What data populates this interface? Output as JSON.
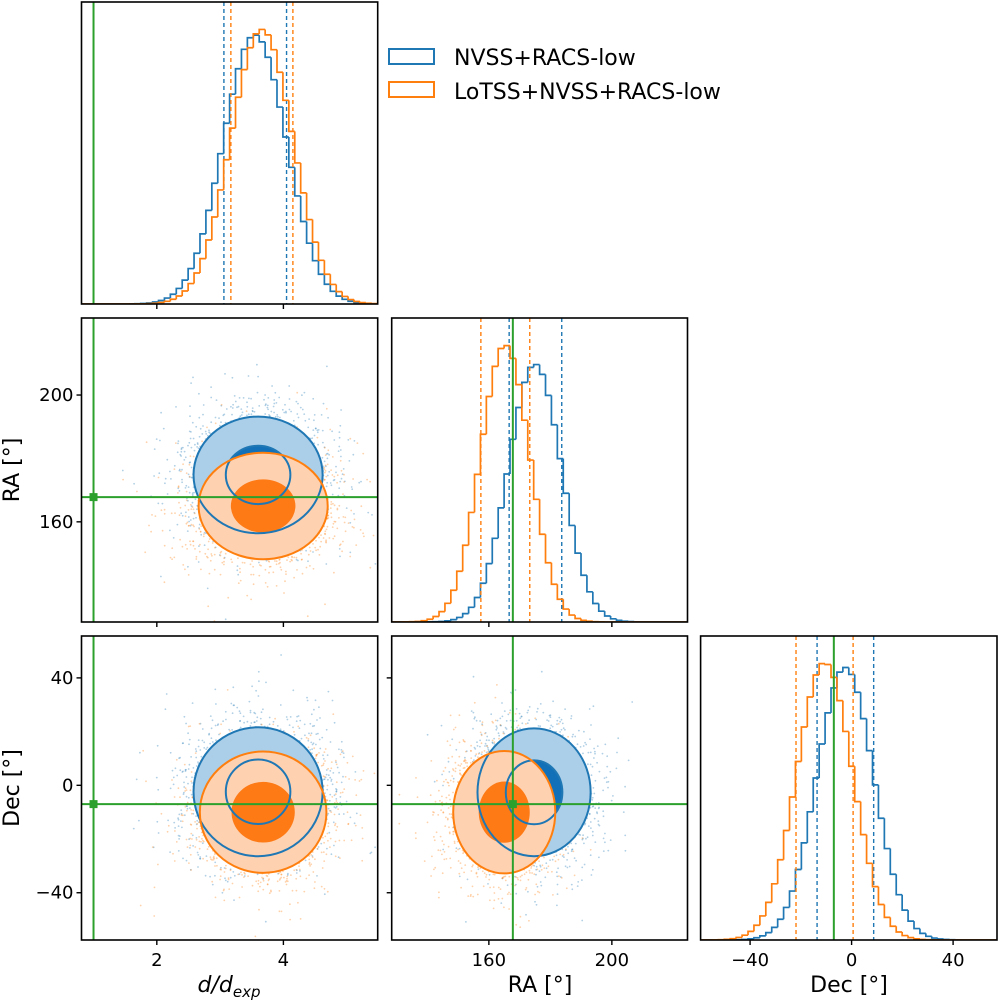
{
  "colors": {
    "series_1": "#1f77b4",
    "series_1_inner_fill": "#1170b8",
    "series_1_outer_fill": "#abcfe9",
    "series_2": "#ff7f0e",
    "series_2_inner_fill": "#fd7a15",
    "series_2_outer_fill": "#fed1b1",
    "truth": "#2ca02c"
  },
  "legend": {
    "placement": "top-right",
    "entries": [
      {
        "label": "NVSS+RACS-low",
        "color": "#1f77b4"
      },
      {
        "label": "LoTSS+NVSS+RACS-low",
        "color": "#ff7f0e"
      }
    ]
  },
  "chart_data": [
    {
      "type": "bar",
      "subplot": "histogram-d",
      "x": {
        "lim": [
          0.81,
          5.49
        ],
        "ticks": [
          2,
          4
        ],
        "tick_labels": []
      },
      "bins": 50,
      "truth": 1.0,
      "series": [
        {
          "name": "NVSS+RACS-low",
          "mean": 3.55,
          "sigma": 0.5,
          "quantile_lines": [
            3.06,
            4.05
          ]
        },
        {
          "name": "LoTSS+NVSS+RACS-low",
          "mean": 3.66,
          "sigma": 0.49,
          "quantile_lines": [
            3.17,
            4.15
          ]
        }
      ]
    },
    {
      "type": "bar",
      "subplot": "histogram-ra",
      "x": {
        "lim": [
          128.4,
          224.6
        ],
        "ticks": [
          160,
          200
        ],
        "tick_labels": []
      },
      "bins": 50,
      "truth": 167.8,
      "series": [
        {
          "name": "NVSS+RACS-low",
          "mean": 175.0,
          "sigma": 8.6,
          "quantile_lines": [
            166.6,
            183.7
          ]
        },
        {
          "name": "LoTSS+NVSS+RACS-low",
          "mean": 165.3,
          "sigma": 8.0,
          "quantile_lines": [
            157.4,
            173.3
          ]
        }
      ]
    },
    {
      "type": "bar",
      "subplot": "histogram-dec",
      "x": {
        "label": "Dec [°]",
        "lim": [
          -59.5,
          57.3
        ],
        "ticks": [
          -40,
          0,
          40
        ],
        "tick_labels": [
          "−40",
          "0",
          "40"
        ]
      },
      "bins": 50,
      "truth": -7.0,
      "series": [
        {
          "name": "NVSS+RACS-low",
          "mean": -2.5,
          "sigma": 11.2,
          "quantile_lines": [
            -13.6,
            8.7
          ]
        },
        {
          "name": "LoTSS+NVSS+RACS-low",
          "mean": -10.6,
          "sigma": 11.0,
          "quantile_lines": [
            -21.9,
            0.6
          ]
        }
      ]
    },
    {
      "type": "scatter",
      "subplot": "d-vs-ra",
      "x": {
        "lim": [
          0.81,
          5.49
        ],
        "ticks": [
          2,
          4
        ],
        "tick_labels": []
      },
      "y": {
        "label": "RA [°]",
        "lim": [
          128.4,
          224.3
        ],
        "ticks": [
          160,
          200
        ],
        "tick_labels": [
          "160",
          "200"
        ]
      },
      "truth": {
        "x": 1.0,
        "y": 167.8
      },
      "contour_levels_sigma": [
        1,
        2
      ],
      "series": [
        {
          "name": "NVSS+RACS-low",
          "x_mean": 3.6,
          "x_sigma": 0.51,
          "y_mean": 174.8,
          "y_sigma": 9.2
        },
        {
          "name": "LoTSS+NVSS+RACS-low",
          "x_mean": 3.68,
          "x_sigma": 0.51,
          "y_mean": 165.0,
          "y_sigma": 8.4
        }
      ]
    },
    {
      "type": "scatter",
      "subplot": "d-vs-dec",
      "x": {
        "label_main": "d/d",
        "label_sub": "exp",
        "lim": [
          0.81,
          5.49
        ],
        "ticks": [
          2,
          4
        ],
        "tick_labels": [
          "2",
          "4"
        ]
      },
      "y": {
        "label": "Dec [°]",
        "lim": [
          -57.6,
          55.6
        ],
        "ticks": [
          -40,
          0,
          40
        ],
        "tick_labels": [
          "−40",
          "0",
          "40"
        ]
      },
      "truth": {
        "x": 1.0,
        "y": -7.0
      },
      "contour_levels_sigma": [
        1,
        2
      ],
      "series": [
        {
          "name": "NVSS+RACS-low",
          "x_mean": 3.6,
          "x_sigma": 0.51,
          "y_mean": -2.4,
          "y_sigma": 12.0
        },
        {
          "name": "LoTSS+NVSS+RACS-low",
          "x_mean": 3.68,
          "x_sigma": 0.5,
          "y_mean": -10.0,
          "y_sigma": 11.3
        }
      ]
    },
    {
      "type": "scatter",
      "subplot": "ra-vs-dec",
      "x": {
        "label": "RA [°]",
        "lim": [
          128.4,
          224.6
        ],
        "ticks": [
          160,
          200
        ],
        "tick_labels": [
          "160",
          "200"
        ]
      },
      "y": {
        "lim": [
          -57.6,
          55.6
        ],
        "ticks": [
          -40,
          0,
          40
        ],
        "tick_labels": []
      },
      "truth": {
        "x": 167.8,
        "y": -7.0
      },
      "contour_levels_sigma": [
        1,
        2
      ],
      "series": [
        {
          "name": "NVSS+RACS-low",
          "x_mean": 174.7,
          "x_sigma": 9.2,
          "y_mean": -2.6,
          "y_sigma": 11.9
        },
        {
          "name": "LoTSS+NVSS+RACS-low",
          "x_mean": 165.0,
          "x_sigma": 8.3,
          "y_mean": -10.0,
          "y_sigma": 11.4
        }
      ]
    }
  ]
}
